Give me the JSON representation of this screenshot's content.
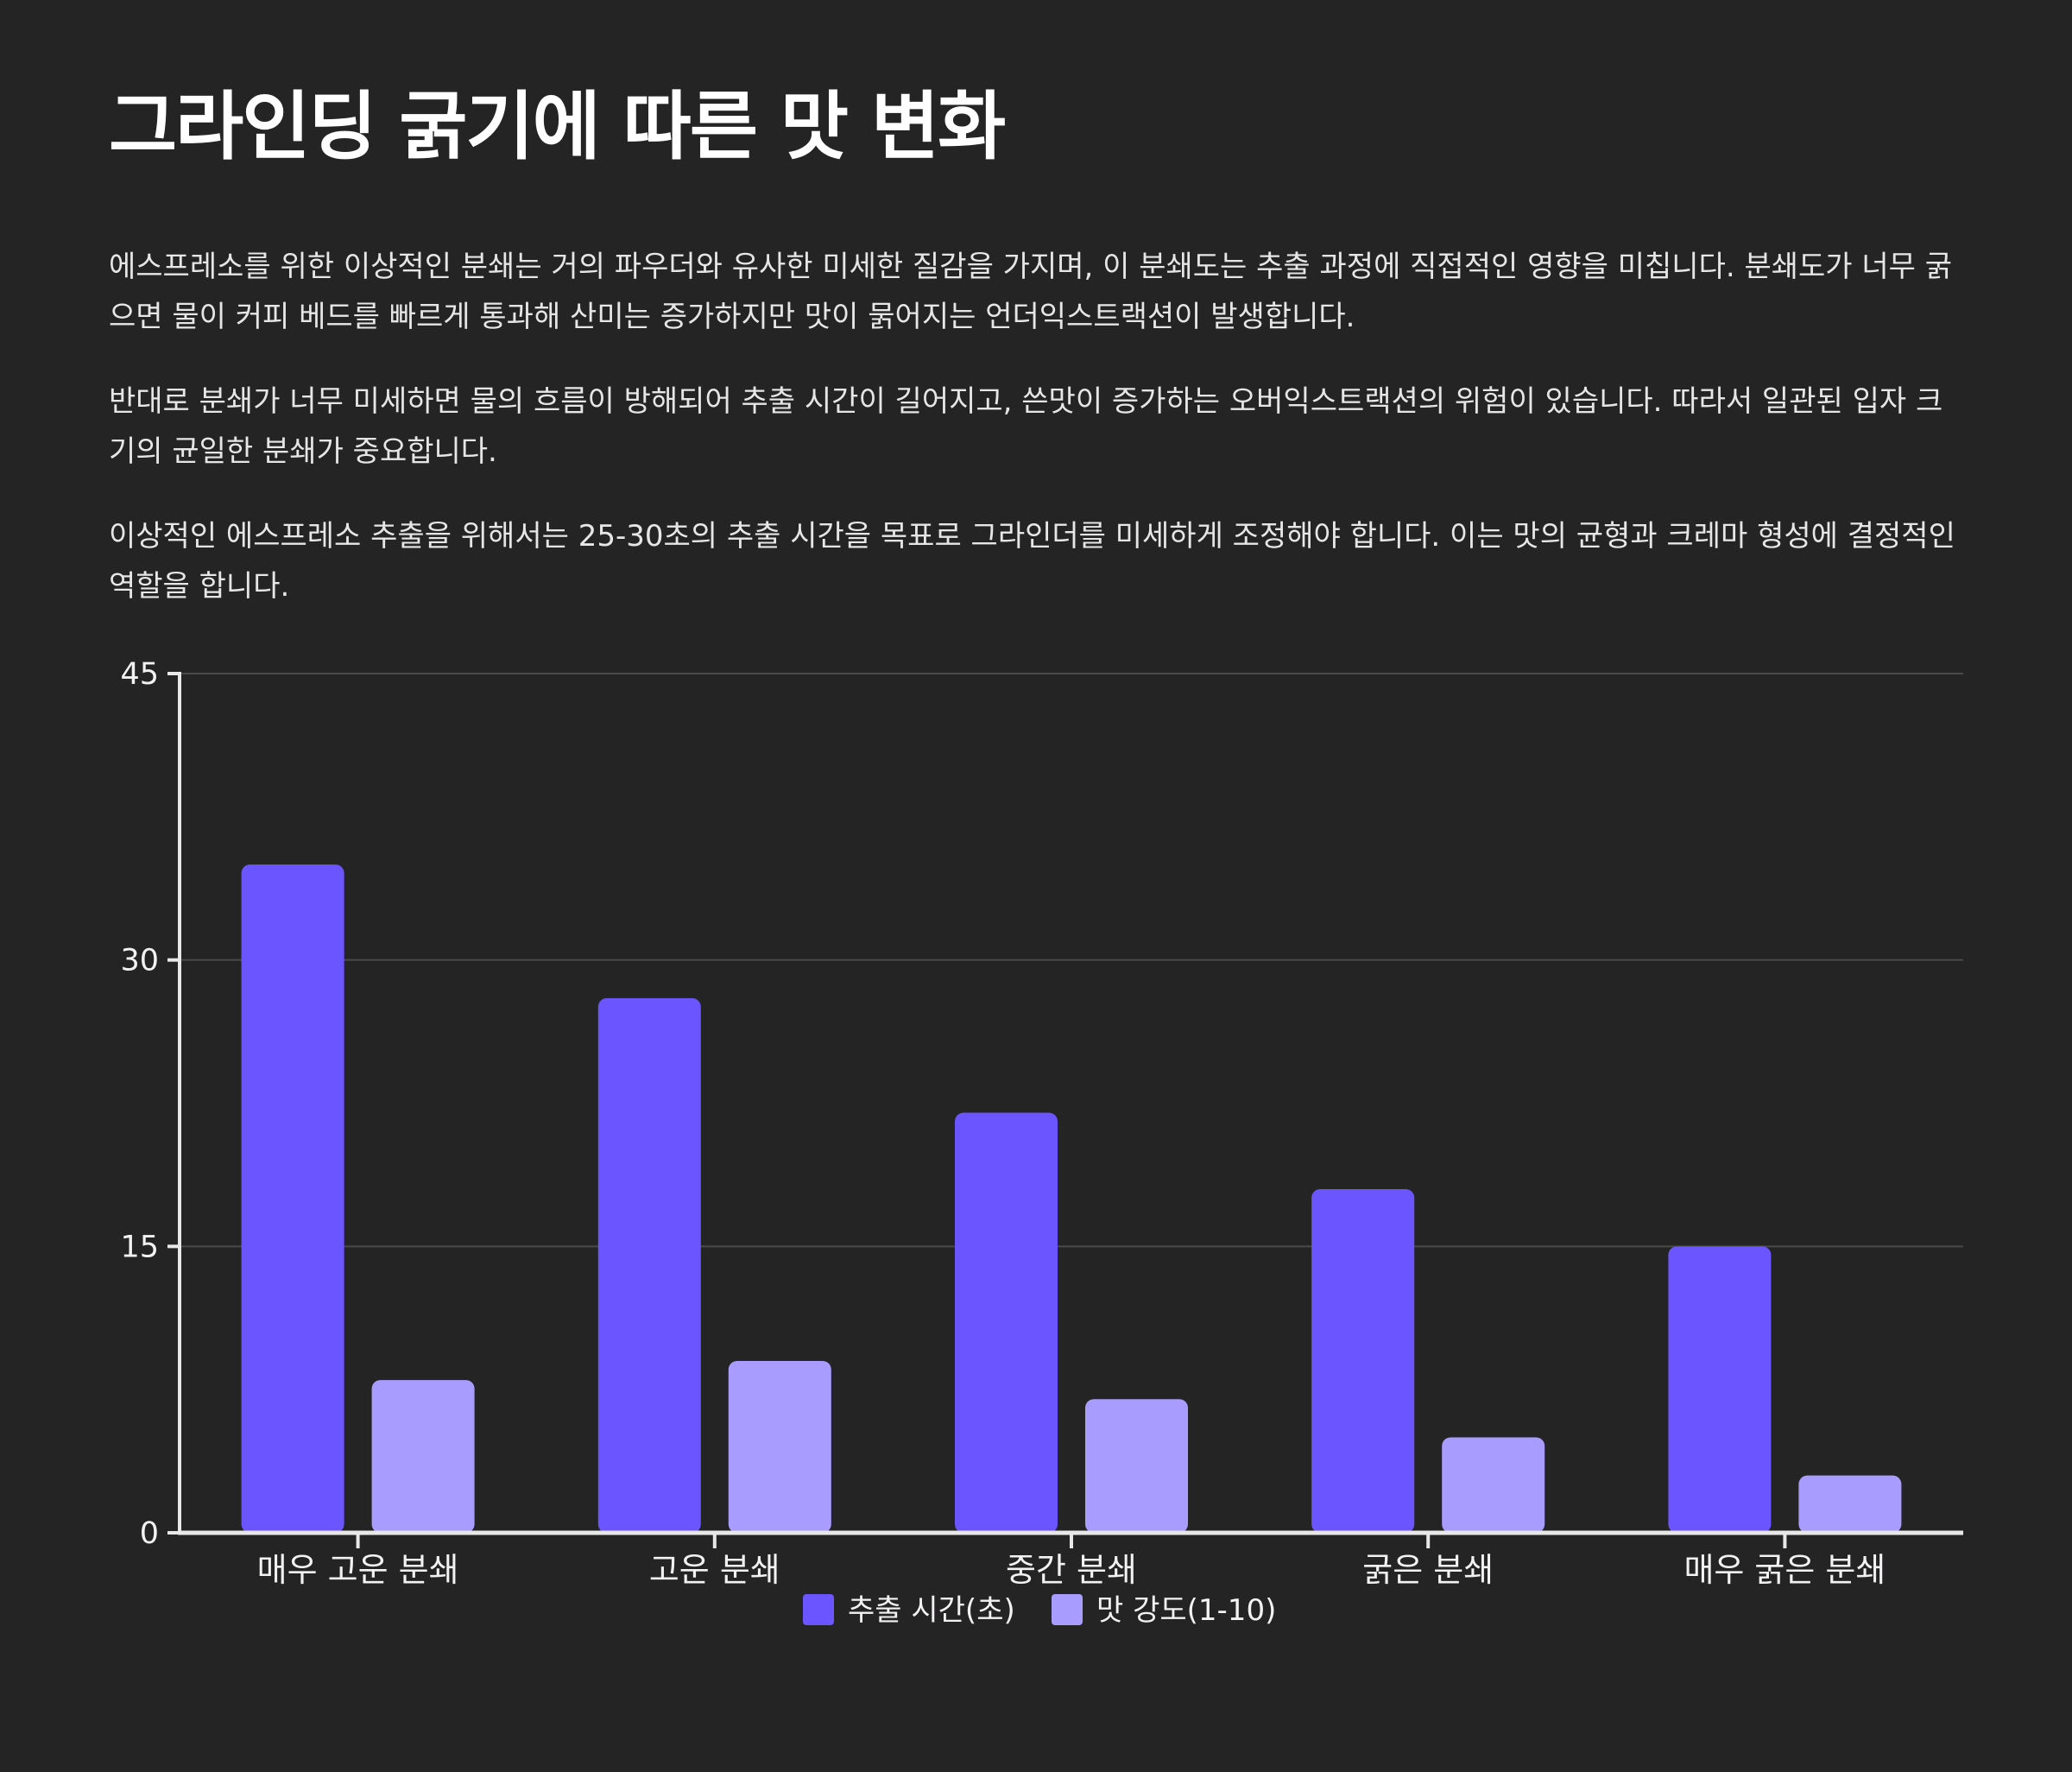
{
  "title": "그라인딩 굵기에 따른 맛 변화",
  "paragraphs": [
    "에스프레소를 위한 이상적인 분쇄는 거의 파우더와 유사한 미세한 질감을 가지며, 이 분쇄도는 추출 과정에 직접적인 영향을 미칩니다. 분쇄도가 너무 굵으면 물이 커피 베드를 빠르게 통과해 산미는 증가하지만 맛이 묽어지는 언더익스트랙션이 발생합니다.",
    "반대로 분쇄가 너무 미세하면 물의 흐름이 방해되어 추출 시간이 길어지고, 쓴맛이 증가하는 오버익스트랙션의 위험이 있습니다. 따라서 일관된 입자 크기의 균일한 분쇄가 중요합니다.",
    "이상적인 에스프레소 추출을 위해서는 25-30초의 추출 시간을 목표로 그라인더를 미세하게 조정해야 합니다. 이는 맛의 균형과 크레마 형성에 결정적인 역할을 합니다."
  ],
  "chart_data": {
    "type": "bar",
    "categories": [
      "매우 고운 분쇄",
      "고운 분쇄",
      "중간 분쇄",
      "굵은 분쇄",
      "매우 굵은 분쇄"
    ],
    "series": [
      {
        "name": "추출 시간(초)",
        "values": [
          35,
          28,
          22,
          18,
          15
        ],
        "color": "#6a55ff"
      },
      {
        "name": "맛 강도(1-10)",
        "values": [
          8,
          9,
          7,
          5,
          3
        ],
        "color": "#a99cff"
      }
    ],
    "yticks": [
      "0",
      "15",
      "30",
      "45"
    ],
    "ylim": [
      0,
      45
    ],
    "grid": true,
    "legend_position": "bottom-center"
  }
}
